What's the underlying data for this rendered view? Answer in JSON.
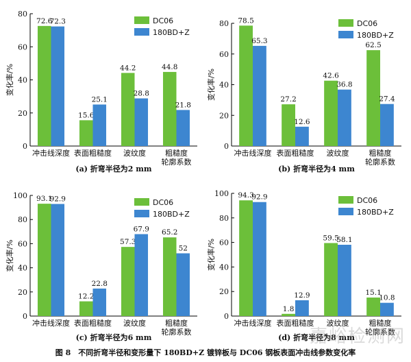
{
  "colors": {
    "dc06": "#6cbf3a",
    "bd": "#3d86d0",
    "axis": "#000000"
  },
  "figure_caption": "图 8　不同折弯半径和变形量下 180BD+Z 镀锌板与 DC06 钢板表面冲击线参数变化率",
  "watermark": "嘉峪检测网",
  "chart_data": [
    {
      "type": "bar",
      "caption": "(a) 折弯半径为2 mm",
      "ylabel": "变化率/%",
      "ylim": [
        0,
        80
      ],
      "yticks": [
        0,
        20,
        40,
        60,
        80
      ],
      "categories": [
        "冲击线深度",
        "表面粗糙度",
        "波纹度",
        "粗糙度|轮廓系数"
      ],
      "legend": [
        "DC06",
        "180BD+Z"
      ],
      "series": [
        {
          "name": "DC06",
          "values": [
            72.6,
            15.6,
            44.2,
            44.8
          ],
          "labels": [
            "72.6",
            "15.6",
            "44.2",
            "44.8"
          ]
        },
        {
          "name": "180BD+Z",
          "values": [
            72.3,
            25.1,
            28.8,
            21.8
          ],
          "labels": [
            "72.3",
            "25.1",
            "28.8",
            "21.8"
          ]
        }
      ]
    },
    {
      "type": "bar",
      "caption": "(b) 折弯半径为4 mm",
      "ylabel": "变化率/%",
      "ylim": [
        0,
        80
      ],
      "yticks": [
        0,
        20,
        40,
        60,
        80
      ],
      "categories": [
        "冲击线深度",
        "表面粗糙度",
        "波纹度",
        "粗糙度|轮廓系数"
      ],
      "legend": [
        "DC06",
        "180BD+Z"
      ],
      "series": [
        {
          "name": "DC06",
          "values": [
            78.5,
            27.2,
            42.6,
            62.5
          ],
          "labels": [
            "78.5",
            "27.2",
            "42.6",
            "62.5"
          ]
        },
        {
          "name": "180BD+Z",
          "values": [
            65.3,
            12.6,
            36.8,
            27.4
          ],
          "labels": [
            "65.3",
            "12.6",
            "36.8",
            "27.4"
          ]
        }
      ]
    },
    {
      "type": "bar",
      "caption": "(c) 折弯半径为6 mm",
      "ylabel": "变化率/%",
      "ylim": [
        0,
        100
      ],
      "yticks": [
        0,
        20,
        40,
        60,
        80,
        100
      ],
      "categories": [
        "冲击线深度",
        "表面粗糙度",
        "波纹度",
        "粗糙度|轮廓系数"
      ],
      "legend": [
        "DC06",
        "180BD+Z"
      ],
      "series": [
        {
          "name": "DC06",
          "values": [
            93.1,
            12.2,
            57.3,
            65.2
          ],
          "labels": [
            "93.1",
            "12.2",
            "57.3",
            "65.2"
          ]
        },
        {
          "name": "180BD+Z",
          "values": [
            92.9,
            22.8,
            67.9,
            52
          ],
          "labels": [
            "92.9",
            "22.8",
            "67.9",
            "52"
          ]
        }
      ]
    },
    {
      "type": "bar",
      "caption": "(d) 折弯半径为8 mm",
      "ylabel": "变化率/%",
      "ylim": [
        0,
        100
      ],
      "yticks": [
        0,
        20,
        40,
        60,
        80,
        100
      ],
      "categories": [
        "冲击线深度",
        "表面粗糙度",
        "波纹度",
        "粗糙度|轮廓系数"
      ],
      "legend": [
        "DC06",
        "180BD+Z"
      ],
      "series": [
        {
          "name": "DC06",
          "values": [
            94.3,
            1.8,
            59.5,
            15.1
          ],
          "labels": [
            "94.3",
            "1.8",
            "59.5",
            "15.1"
          ]
        },
        {
          "name": "180BD+Z",
          "values": [
            92.9,
            12.9,
            58.1,
            10.8
          ],
          "labels": [
            "92.9",
            "12.9",
            "58.1",
            "10.8"
          ]
        }
      ]
    }
  ]
}
